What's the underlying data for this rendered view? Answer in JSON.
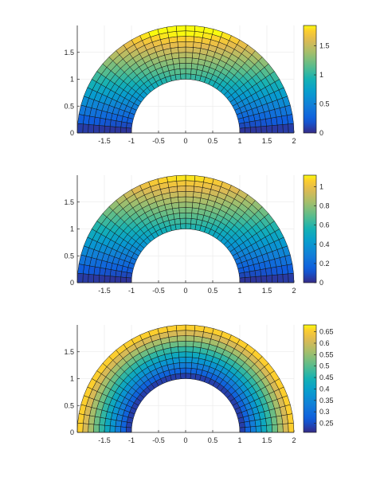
{
  "chart_data": [
    {
      "type": "heatmap",
      "plot": "annular-mesh",
      "title": "",
      "xlabel": "",
      "ylabel": "",
      "xlim": [
        -2,
        2
      ],
      "ylim": [
        0,
        2
      ],
      "xticks": [
        "-1.5",
        "-1",
        "-0.5",
        "0",
        "0.5",
        "1",
        "1.5",
        "2"
      ],
      "yticks": [
        "0",
        "0.5",
        "1",
        "1.5"
      ],
      "grid": true,
      "colormap": "parula",
      "mesh": {
        "inner_radius": 1,
        "outer_radius": 2,
        "radial_divisions": 10,
        "angular_divisions": 36
      },
      "color_range": [
        0,
        1.85
      ],
      "colorbar_ticks": [
        "0",
        "0.5",
        "1",
        "1.5"
      ],
      "field": "r*sin(theta)",
      "values_note": ""
    },
    {
      "type": "heatmap",
      "plot": "annular-mesh",
      "title": "",
      "xlabel": "",
      "ylabel": "",
      "xlim": [
        -2,
        2
      ],
      "ylim": [
        0,
        2
      ],
      "xticks": [
        "-1.5",
        "-1",
        "-0.5",
        "0",
        "0.5",
        "1",
        "1.5",
        "2"
      ],
      "yticks": [
        "0",
        "0.5",
        "1",
        "1.5"
      ],
      "grid": true,
      "colormap": "parula",
      "mesh": {
        "inner_radius": 1,
        "outer_radius": 2,
        "radial_divisions": 10,
        "angular_divisions": 36
      },
      "color_range": [
        0,
        1.12
      ],
      "colorbar_ticks": [
        "0",
        "0.2",
        "0.4",
        "0.6",
        "0.8",
        "1"
      ],
      "field": "0.56*r*sin(theta)",
      "values_note": ""
    },
    {
      "type": "heatmap",
      "plot": "annular-mesh",
      "title": "",
      "xlabel": "",
      "ylabel": "",
      "xlim": [
        -2,
        2
      ],
      "ylim": [
        0,
        2
      ],
      "xticks": [
        "-1.5",
        "-1",
        "-0.5",
        "0",
        "0.5",
        "1",
        "1.5",
        "2"
      ],
      "yticks": [
        "0",
        "0.5",
        "1",
        "1.5"
      ],
      "grid": true,
      "colormap": "parula",
      "mesh": {
        "inner_radius": 1,
        "outer_radius": 2,
        "radial_divisions": 10,
        "angular_divisions": 36
      },
      "color_range": [
        0.21,
        0.68
      ],
      "colorbar_ticks": [
        "0.25",
        "0.3",
        "0.35",
        "0.4",
        "0.45",
        "0.5",
        "0.55",
        "0.6",
        "0.65"
      ],
      "field": "radial",
      "values_note": ""
    }
  ]
}
